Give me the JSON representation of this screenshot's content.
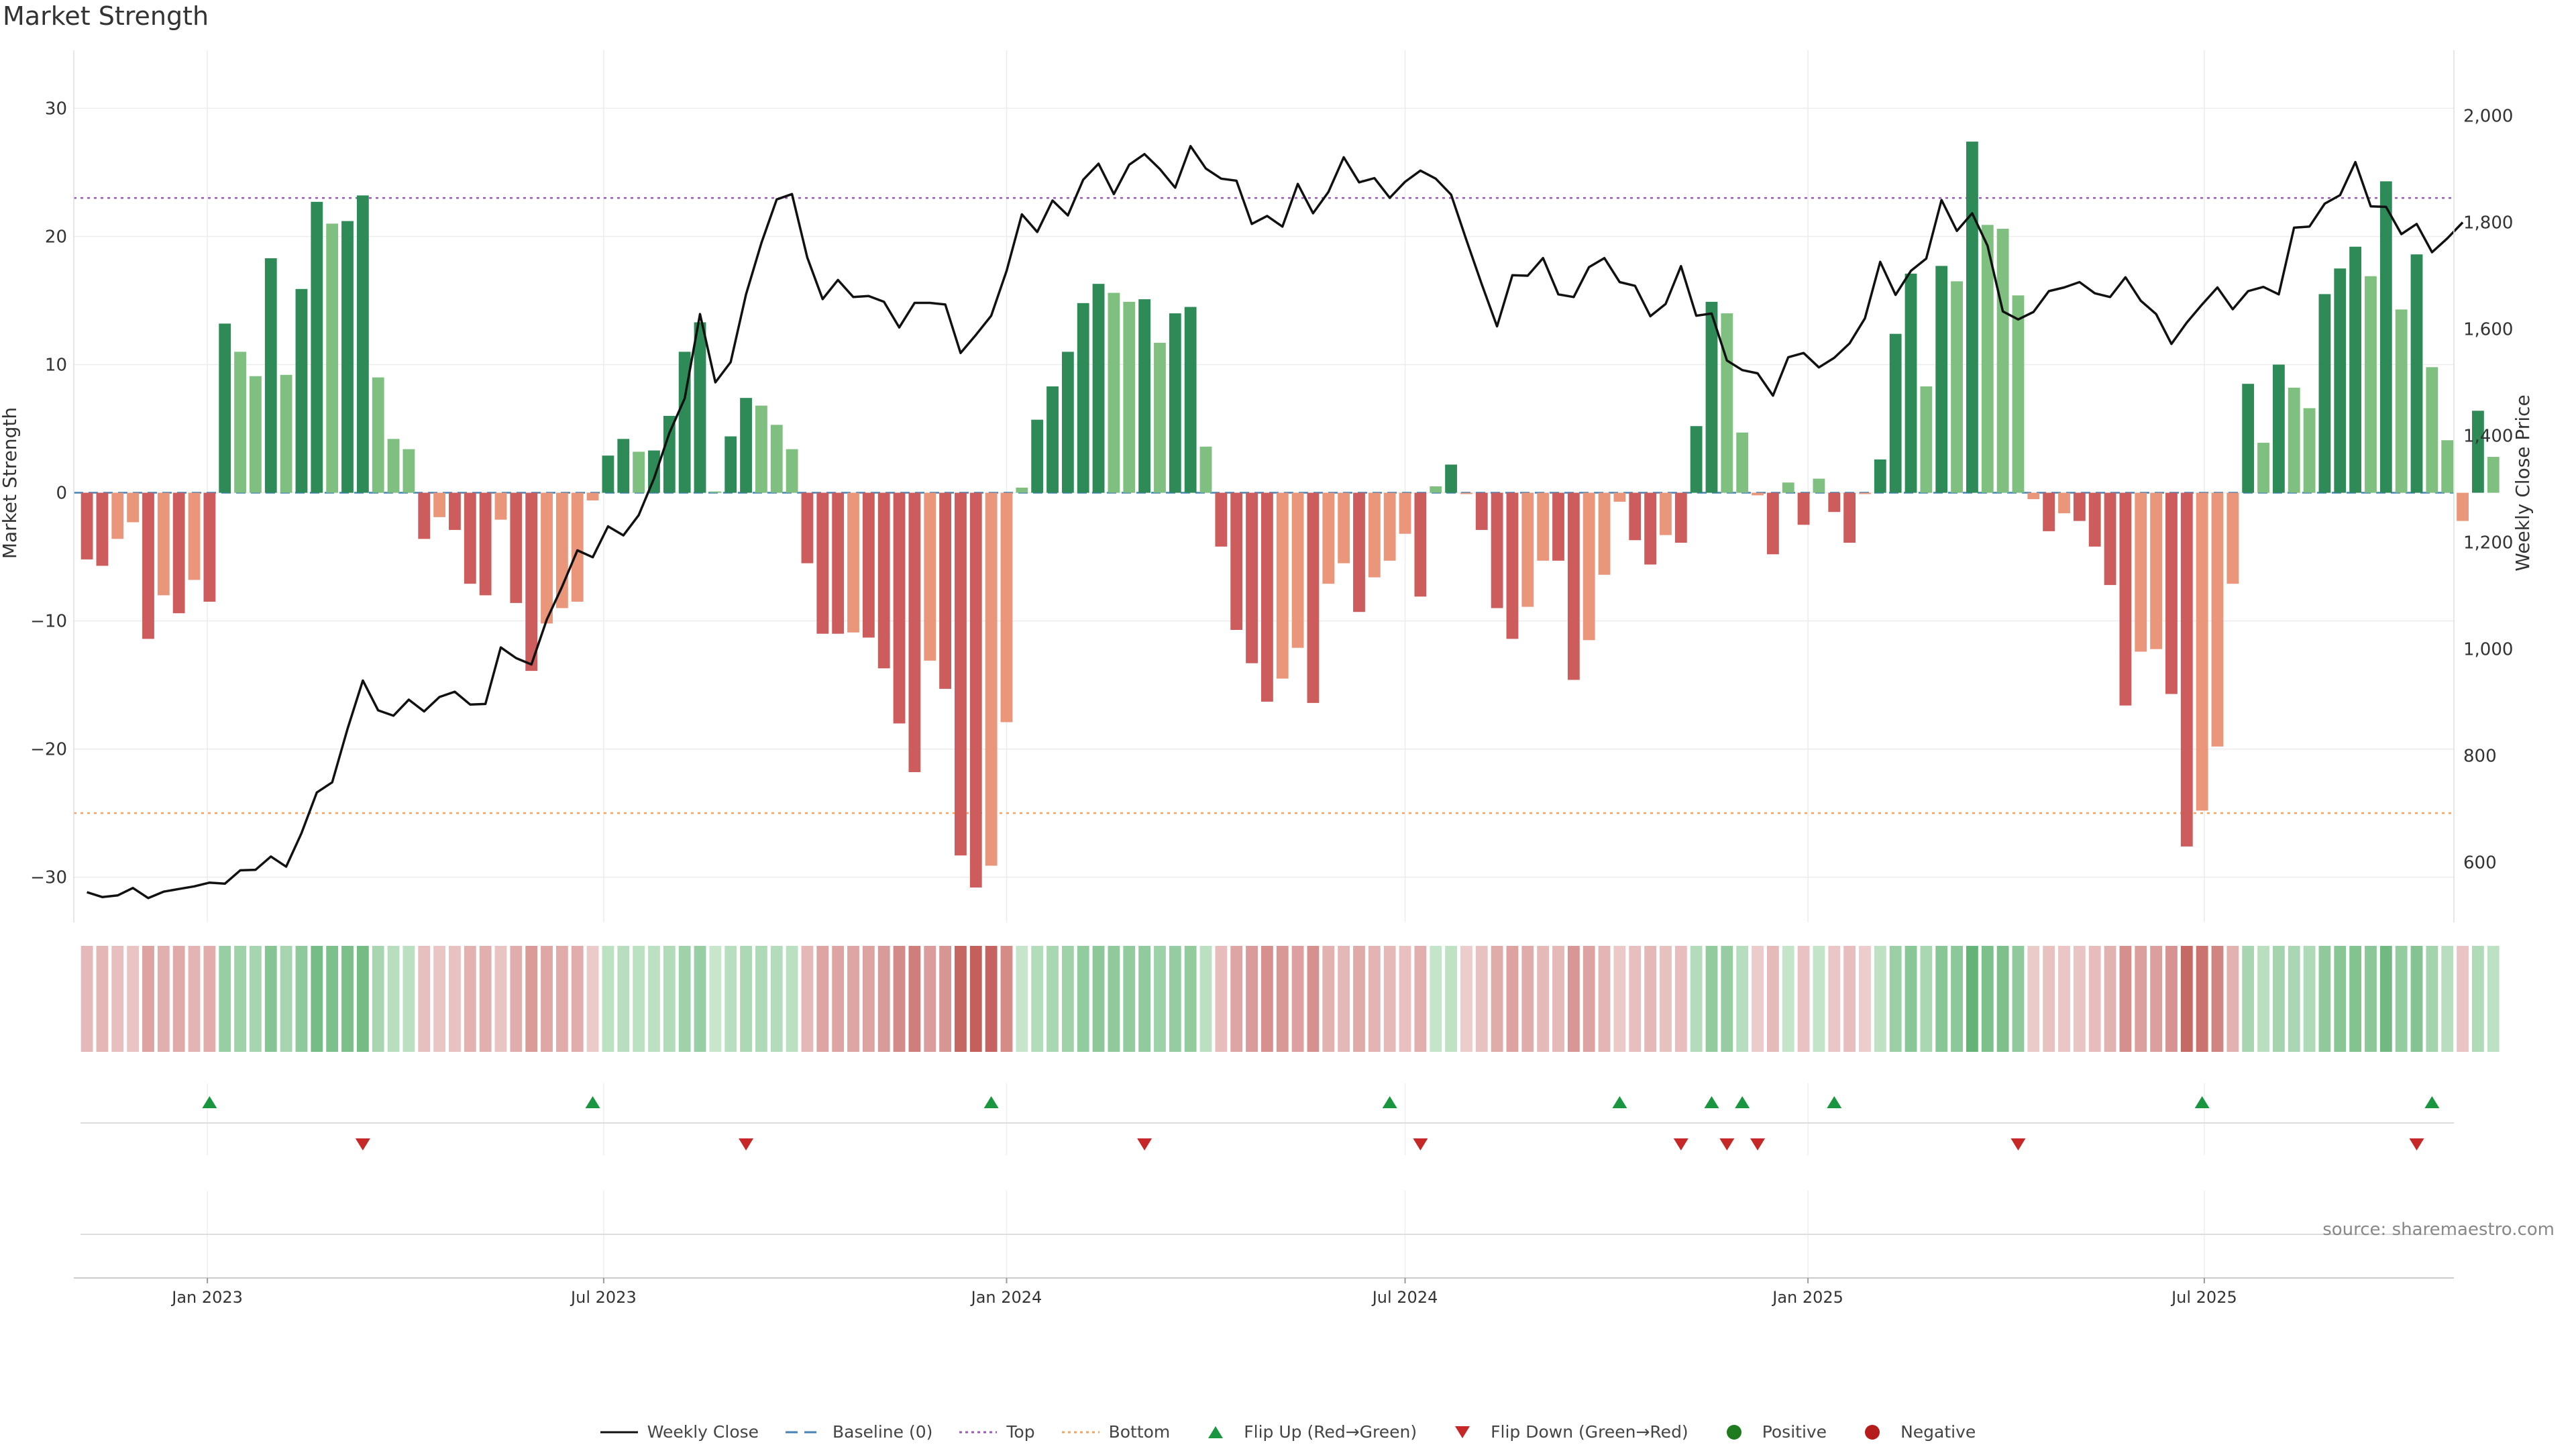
{
  "title": "Market Strength",
  "source": "source: sharemaestro.com",
  "colors": {
    "pos_dark": "#2e8b57",
    "pos_light": "#7fbf7f",
    "neg_dark": "#cd5c5c",
    "neg_light": "#e9967a",
    "price": "#111111",
    "baseline": "#4682b4",
    "top": "#9b59b6",
    "bottom": "#f4a460",
    "flip_up": "#1a9641",
    "flip_down": "#c62828",
    "positive": "#1e7b1e",
    "negative": "#b71c1c"
  },
  "legend": [
    {
      "key": "price",
      "label": "Weekly Close",
      "marker": "line"
    },
    {
      "key": "baseline",
      "label": "Baseline (0)",
      "marker": "dash"
    },
    {
      "key": "top",
      "label": "Top",
      "marker": "dot"
    },
    {
      "key": "bottom",
      "label": "Bottom",
      "marker": "dot"
    },
    {
      "key": "flip_up",
      "label": "Flip Up (Red→Green)",
      "marker": "up"
    },
    {
      "key": "flip_down",
      "label": "Flip Down (Green→Red)",
      "marker": "down"
    },
    {
      "key": "positive",
      "label": "Positive",
      "marker": "circle"
    },
    {
      "key": "negative",
      "label": "Negative",
      "marker": "circle"
    }
  ],
  "chart_data": {
    "type": "bar",
    "title": "Market Strength",
    "ylabel": "Market Strength",
    "y2label": "Weekly Close Price",
    "ylim": [
      -33,
      34
    ],
    "y2lim": [
      500,
      2110
    ],
    "yticks": [
      -30,
      -20,
      -10,
      0,
      10,
      20,
      30
    ],
    "y2ticks": [
      600,
      800,
      1000,
      1200,
      1400,
      1600,
      1800,
      2000
    ],
    "y2tick_labels": [
      "600",
      "800",
      "1,000",
      "1,200",
      "1,400",
      "1,600",
      "1,800",
      "2,000"
    ],
    "top_level": 23,
    "bottom_level": -25,
    "baseline": 0,
    "x_start": "2022-11-07",
    "x_range": [
      "2022-11-01",
      "2025-10-23"
    ],
    "xticks": [
      {
        "label": "Jan 2023",
        "date": "2023-01-01"
      },
      {
        "label": "Jul 2023",
        "date": "2023-07-01"
      },
      {
        "label": "Jan 2024",
        "date": "2024-01-01"
      },
      {
        "label": "Jul 2024",
        "date": "2024-07-01"
      },
      {
        "label": "Jan 2025",
        "date": "2025-01-01"
      },
      {
        "label": "Jul 2025",
        "date": "2025-07-01"
      }
    ],
    "strength": [
      -5.2,
      -5.7,
      -3.6,
      -2.3,
      -11.4,
      -8.0,
      -9.4,
      -6.8,
      -8.5,
      13.2,
      11.0,
      9.1,
      18.3,
      9.2,
      15.9,
      22.7,
      21.0,
      21.2,
      23.2,
      9.0,
      4.2,
      3.4,
      -3.6,
      -1.9,
      -2.9,
      -7.1,
      -8.0,
      -2.1,
      -8.6,
      -13.9,
      -10.2,
      -9.0,
      -8.5,
      -0.6,
      2.9,
      4.2,
      3.2,
      3.3,
      6.0,
      11.0,
      13.3,
      0.1,
      4.4,
      7.4,
      6.8,
      5.3,
      3.4,
      -5.5,
      -11.0,
      -11.0,
      -10.9,
      -11.3,
      -13.7,
      -18.0,
      -21.8,
      -13.1,
      -15.3,
      -28.3,
      -30.8,
      -29.1,
      -17.9,
      0.4,
      5.7,
      8.3,
      11.0,
      14.8,
      16.3,
      15.6,
      14.9,
      15.1,
      11.7,
      14.0,
      14.5,
      3.6,
      -4.2,
      -10.7,
      -13.3,
      -16.3,
      -14.5,
      -12.1,
      -16.4,
      -7.1,
      -5.5,
      -9.3,
      -6.6,
      -5.3,
      -3.2,
      -8.1,
      0.5,
      2.2,
      -0.1,
      -2.9,
      -9.0,
      -11.4,
      -8.9,
      -5.3,
      -5.3,
      -14.6,
      -11.5,
      -6.4,
      -0.7,
      -3.7,
      -5.6,
      -3.3,
      -3.9,
      5.2,
      14.9,
      14.0,
      4.7,
      -0.2,
      -4.8,
      0.8,
      -2.5,
      1.1,
      -1.5,
      -3.9,
      -0.1,
      2.6,
      12.4,
      17.1,
      8.3,
      17.7,
      16.5,
      27.4,
      20.9,
      20.6,
      15.4,
      -0.5,
      -3.0,
      -1.6,
      -2.2,
      -4.2,
      -7.2,
      -16.6,
      -12.4,
      -12.2,
      -15.7,
      -27.6,
      -24.8,
      -19.8,
      -7.1,
      8.5,
      3.9,
      10.0,
      8.2,
      6.6,
      15.5,
      17.5,
      19.2,
      16.9,
      24.3,
      14.3,
      18.6,
      9.8,
      4.1,
      -2.2,
      6.4,
      2.8
    ],
    "close": [
      544,
      535,
      538,
      552,
      533,
      545,
      550,
      555,
      562,
      560,
      585,
      586,
      611,
      592,
      655,
      731,
      750,
      850,
      941,
      885,
      875,
      905,
      883,
      910,
      920,
      896,
      897,
      1003,
      983,
      971,
      1055,
      1117,
      1185,
      1172,
      1230,
      1213,
      1251,
      1320,
      1405,
      1470,
      1628,
      1500,
      1538,
      1665,
      1761,
      1843,
      1853,
      1734,
      1656,
      1692,
      1660,
      1662,
      1651,
      1603,
      1649,
      1649,
      1646,
      1555,
      1589,
      1625,
      1709,
      1815,
      1782,
      1841,
      1813,
      1880,
      1910,
      1853,
      1908,
      1928,
      1900,
      1865,
      1943,
      1901,
      1882,
      1878,
      1797,
      1812,
      1792,
      1872,
      1817,
      1857,
      1922,
      1875,
      1883,
      1846,
      1876,
      1897,
      1882,
      1852,
      1767,
      1684,
      1605,
      1701,
      1700,
      1733,
      1665,
      1660,
      1716,
      1733,
      1688,
      1681,
      1624,
      1647,
      1718,
      1625,
      1629,
      1541,
      1523,
      1517,
      1475,
      1547,
      1555,
      1528,
      1546,
      1573,
      1620,
      1726,
      1664,
      1709,
      1732,
      1842,
      1784,
      1817,
      1756,
      1633,
      1618,
      1632,
      1671,
      1678,
      1688,
      1667,
      1660,
      1697,
      1653,
      1628,
      1572,
      1612,
      1646,
      1678,
      1637,
      1671,
      1679,
      1665,
      1790,
      1792,
      1835,
      1851,
      1913,
      1830,
      1829,
      1778,
      1797,
      1744,
      1770,
      1800
    ]
  },
  "heat_strip": {
    "pos_light": "#c7e6cc",
    "pos_dark": "#5caf6f",
    "neg_light": "#eccccc",
    "neg_dark": "#c3605c"
  },
  "flips": {
    "up": [
      "2023-01-02",
      "2023-06-26",
      "2023-12-25",
      "2024-06-24",
      "2024-10-07",
      "2024-11-18",
      "2024-12-02",
      "2025-01-13",
      "2025-06-30",
      "2025-10-13"
    ],
    "down": [
      "2023-03-13",
      "2023-09-04",
      "2024-03-04",
      "2024-07-08",
      "2024-11-04",
      "2024-11-25",
      "2024-12-09",
      "2025-04-07",
      "2025-10-06"
    ]
  }
}
